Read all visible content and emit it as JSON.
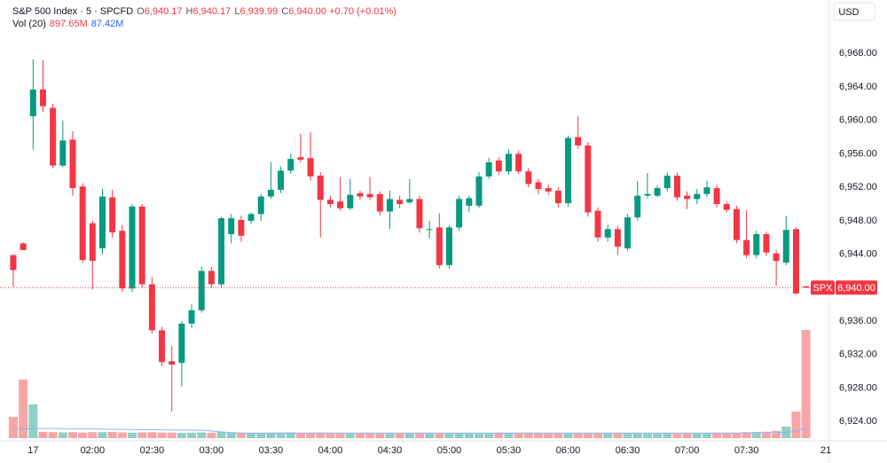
{
  "chart_data": {
    "type": "candlestick",
    "title": "S&P 500 Index · 5 · SPCFD",
    "ohlc_legend": [
      {
        "label": "O",
        "value": "6,940.17"
      },
      {
        "label": "H",
        "value": "6,940.17"
      },
      {
        "label": "L",
        "value": "6,939.99"
      },
      {
        "label": "C",
        "value": "6,940.00"
      }
    ],
    "change": "+0.70 (+0.01%)",
    "volume_legend": {
      "label": "Vol (20)",
      "last": "897.65M",
      "ma": "87.42M"
    },
    "currency": "USD",
    "up_color": "#089981",
    "down_color": "#f23645",
    "volume_up_color": "#8fcfc4",
    "volume_down_color": "#f7a6a8",
    "volume_ma_color": "#90b8f0",
    "open": [
      6943.9,
      6945.3,
      6960.5,
      6963.7,
      6961.5,
      6954.6,
      6957.7,
      6952.1,
      6947.7,
      6944.7,
      6950.8,
      6946.8,
      6939.9,
      6949.7,
      6940.4,
      6934.9,
      6931.2,
      6931.0,
      6935.7,
      6937.3,
      6942,
      6940.4,
      6946.4,
      6948.1,
      6948,
      6948.8,
      6950.9,
      6951.7,
      6954,
      6955.6,
      6955.5,
      6953.4,
      6950.5,
      6950.3,
      6949.5,
      6951.3,
      6951.2,
      6951.2,
      6949.1,
      6950.5,
      6950.2,
      6950.6,
      6946.9,
      6947.2,
      6942.7,
      6947.2,
      6949.8,
      6949.8,
      6953.3,
      6955.2,
      6953.9,
      6956,
      6953.9,
      6952.6,
      6951.9,
      6951.6,
      6950.1,
      6958,
      6957,
      6949.2,
      6946,
      6947,
      6944.7,
      6948.4,
      6951,
      6951,
      6951.9,
      6953.4,
      6951,
      6950.6,
      6951.2,
      6951.9,
      6950,
      6949.4,
      6945.7,
      6943.9,
      6946.4,
      6944.1,
      6943,
      6947,
      6940.17
    ],
    "high": [
      6943.9,
      6945.4,
      6967.3,
      6967.2,
      6962,
      6960,
      6958.7,
      6952.5,
      6948,
      6951.8,
      6951.7,
      6947.5,
      6950,
      6950,
      6941.3,
      6935.3,
      6933,
      6936,
      6938,
      6942.5,
      6942.5,
      6948.5,
      6948.8,
      6948.6,
      6949,
      6951.2,
      6955,
      6954.5,
      6956,
      6958.4,
      6958.6,
      6953.8,
      6951,
      6953.2,
      6953,
      6951.6,
      6953.2,
      6951.5,
      6951.6,
      6951,
      6953,
      6951,
      6948,
      6948.9,
      6947.5,
      6951,
      6951,
      6953.8,
      6955.5,
      6955.6,
      6956.5,
      6956.4,
      6954.3,
      6953,
      6952.3,
      6952,
      6958.2,
      6960.5,
      6957.4,
      6949.6,
      6947.5,
      6947.4,
      6948.8,
      6952.8,
      6953.7,
      6952.2,
      6953.8,
      6953.8,
      6951.5,
      6951.8,
      6952.8,
      6952.3,
      6950.3,
      6949.8,
      6949.3,
      6946.8,
      6946.7,
      6944.5,
      6948.6,
      6947.2,
      6940.17
    ],
    "low": [
      6940.1,
      6944.5,
      6956.5,
      6961,
      6954.3,
      6954.4,
      6951,
      6943,
      6939.8,
      6944,
      6946,
      6939.5,
      6939.5,
      6940,
      6934.5,
      6930.6,
      6925.2,
      6928.2,
      6935.2,
      6937,
      6940,
      6940,
      6945.3,
      6945.5,
      6947.6,
      6948,
      6950.6,
      6951.3,
      6953.6,
      6955,
      6952.8,
      6946,
      6949.6,
      6949.2,
      6949.3,
      6950.5,
      6950.5,
      6948.6,
      6947,
      6949.5,
      6950,
      6946.6,
      6945.9,
      6942.3,
      6942.3,
      6946.8,
      6949,
      6949.5,
      6953,
      6953.5,
      6953.5,
      6953.6,
      6952,
      6951.2,
      6951.1,
      6949.6,
      6949.7,
      6956.6,
      6948.5,
      6945.5,
      6945.5,
      6943.9,
      6944.4,
      6948,
      6950.7,
      6950.8,
      6951.5,
      6950.4,
      6949.4,
      6950,
      6950.8,
      6949.6,
      6949,
      6945.3,
      6943.5,
      6943.5,
      6943.8,
      6940.2,
      6942.7,
      6939.2,
      6939.99
    ],
    "close": [
      6942.1,
      6944.5,
      6963.7,
      6961.7,
      6954.6,
      6957.6,
      6951.9,
      6943.3,
      6943.2,
      6950.9,
      6946.6,
      6939.9,
      6949.7,
      6940.4,
      6934.9,
      6931.1,
      6930.8,
      6935.7,
      6937.3,
      6942,
      6940.4,
      6948.3,
      6948.3,
      6946.2,
      6948.8,
      6950.9,
      6951.7,
      6954,
      6955.4,
      6955.3,
      6953.3,
      6950.5,
      6950,
      6949.5,
      6951.1,
      6950.9,
      6950.8,
      6949.1,
      6950.6,
      6950,
      6950.6,
      6947.1,
      6947,
      6942.7,
      6947.2,
      6950.6,
      6950.7,
      6953.3,
      6955,
      6953.9,
      6956,
      6953.9,
      6952.4,
      6951.8,
      6951.5,
      6950.1,
      6957.9,
      6957,
      6949,
      6946,
      6947,
      6944.9,
      6948.4,
      6951,
      6951.2,
      6951.9,
      6953.4,
      6950.8,
      6950.6,
      6951.2,
      6952,
      6950,
      6949.3,
      6945.7,
      6943.9,
      6946.4,
      6944.2,
      6943.2,
      6946.9,
      6939.3,
      6940.0
    ],
    "volume": [
      177,
      486,
      280,
      52,
      50,
      48,
      50,
      46,
      50,
      50,
      52,
      48,
      46,
      48,
      50,
      46,
      46,
      44,
      46,
      48,
      44,
      52,
      50,
      46,
      42,
      44,
      46,
      46,
      48,
      44,
      44,
      46,
      42,
      40,
      40,
      42,
      40,
      40,
      42,
      40,
      42,
      42,
      44,
      42,
      44,
      42,
      42,
      44,
      44,
      46,
      44,
      42,
      40,
      40,
      42,
      40,
      42,
      42,
      40,
      42,
      44,
      40,
      40,
      42,
      42,
      42,
      40,
      42,
      44,
      40,
      44,
      46,
      42,
      44,
      50,
      52,
      54,
      60,
      96,
      221,
      897.65
    ],
    "volume_ma": [
      74,
      76,
      79,
      80,
      80,
      79,
      78,
      77,
      76,
      75,
      74,
      73,
      72,
      71,
      70,
      69,
      68,
      67,
      66,
      65,
      60,
      52,
      45,
      42,
      42,
      42,
      42,
      42,
      42,
      42,
      42,
      42,
      42,
      42,
      42,
      42,
      42,
      42,
      42,
      42,
      42,
      42,
      42,
      42,
      42,
      42,
      42,
      42,
      42,
      42,
      42,
      42,
      42,
      42,
      42,
      42,
      42,
      42,
      42,
      42,
      42,
      42,
      42,
      42,
      42,
      42,
      42,
      42,
      42,
      42,
      42,
      42,
      42,
      42,
      43,
      44,
      45,
      46,
      49,
      57,
      87.42
    ],
    "xlim": [
      -1.34,
      82.36
    ],
    "xticks": [
      {
        "value": 2,
        "label": "17"
      },
      {
        "value": 8,
        "label": "02:00"
      },
      {
        "value": 14,
        "label": "02:30"
      },
      {
        "value": 20,
        "label": "03:00"
      },
      {
        "value": 26,
        "label": "03:30"
      },
      {
        "value": 32,
        "label": "04:00"
      },
      {
        "value": 38,
        "label": "04:30"
      },
      {
        "value": 44,
        "label": "05:00"
      },
      {
        "value": 50,
        "label": "05:30"
      },
      {
        "value": 56,
        "label": "06:00"
      },
      {
        "value": 62,
        "label": "06:30"
      },
      {
        "value": 68,
        "label": "07:00"
      },
      {
        "value": 74,
        "label": "07:30"
      },
      {
        "value": 82,
        "label": "21"
      }
    ],
    "ylim": [
      6922,
      6974.4
    ],
    "yticks": [
      {
        "value": 6924,
        "label": "6,924.00"
      },
      {
        "value": 6928,
        "label": "6,928.00"
      },
      {
        "value": 6932,
        "label": "6,932.00"
      },
      {
        "value": 6936,
        "label": "6,936.00"
      },
      {
        "value": 6940,
        "label": "6,940.00"
      },
      {
        "value": 6944,
        "label": "6,944.00"
      },
      {
        "value": 6948,
        "label": "6,948.00"
      },
      {
        "value": 6952,
        "label": "6,952.00"
      },
      {
        "value": 6956,
        "label": "6,956.00"
      },
      {
        "value": 6960,
        "label": "6,960.00"
      },
      {
        "value": 6964,
        "label": "6,964.00"
      },
      {
        "value": 6968,
        "label": "6,968.00"
      }
    ],
    "last_price": {
      "symbol": "SPX",
      "value": 6940,
      "label": "6,940.00"
    },
    "grid": false
  }
}
